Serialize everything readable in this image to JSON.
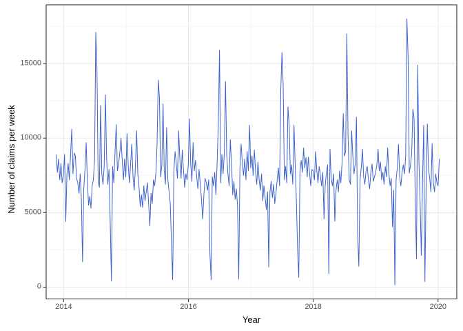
{
  "chart_data": {
    "type": "line",
    "title": "",
    "xlabel": "Year",
    "ylabel": "Number of claims per week",
    "series_name": "claims per week",
    "frequency": "weekly",
    "legend": "none",
    "grid": true,
    "line_color": "#3D63CE",
    "panel_border_color": "#333333",
    "grid_major_color": "#e8e8e8",
    "grid_minor_color": "#f4f4f4",
    "tick_label_color": "#4d4d4d",
    "x_ticks": [
      2014,
      2016,
      2018,
      2020
    ],
    "x_tick_labels": [
      "2014",
      "2016",
      "2018",
      "2020"
    ],
    "x_minor_ticks": [
      2015,
      2017,
      2019
    ],
    "y_ticks": [
      0,
      5000,
      10000,
      15000
    ],
    "y_tick_labels": [
      "0",
      "5000",
      "10000",
      "15000"
    ],
    "y_minor_ticks": [
      2500,
      7500,
      12500,
      17500
    ],
    "xlim": [
      2013.72,
      2020.3
    ],
    "ylim": [
      -790,
      18940
    ],
    "x_range_years": [
      2013.88,
      2020.02
    ],
    "values": [
      8900,
      7700,
      8600,
      7200,
      8300,
      7000,
      7500,
      8900,
      4400,
      7600,
      8300,
      7200,
      8900,
      10600,
      7600,
      9000,
      8800,
      7300,
      7000,
      6300,
      7600,
      5900,
      1700,
      6600,
      7900,
      9700,
      7100,
      5500,
      6100,
      5300,
      6800,
      7200,
      8600,
      17100,
      14500,
      7100,
      6700,
      12200,
      7600,
      6900,
      8100,
      12900,
      8700,
      6900,
      7900,
      4350,
      400,
      8100,
      7000,
      9000,
      10900,
      7800,
      8300,
      9000,
      10000,
      8500,
      7200,
      8600,
      7400,
      10300,
      8200,
      7000,
      8300,
      9600,
      7400,
      6500,
      8100,
      10500,
      7600,
      6700,
      5400,
      6200,
      5350,
      6800,
      5800,
      6400,
      7000,
      5600,
      4100,
      6300,
      5600,
      7200,
      6800,
      7600,
      9500,
      13900,
      12700,
      7400,
      8200,
      12300,
      7800,
      6900,
      10700,
      7200,
      6400,
      5600,
      3000,
      500,
      7800,
      9100,
      8300,
      7300,
      10500,
      8600,
      7300,
      9200,
      7900,
      6700,
      7600,
      7200,
      8200,
      11300,
      8300,
      7100,
      9700,
      7800,
      8500,
      7400,
      6600,
      7900,
      6900,
      5900,
      4580,
      6200,
      7300,
      7000,
      6500,
      7200,
      2300,
      500,
      7400,
      6800,
      7700,
      6200,
      8300,
      10950,
      15900,
      7000,
      8900,
      7600,
      9000,
      13800,
      8900,
      7600,
      6800,
      9900,
      8300,
      6200,
      7100,
      5900,
      6600,
      5500,
      550,
      8000,
      9600,
      8300,
      7500,
      8600,
      7200,
      9100,
      7800,
      10870,
      8000,
      8800,
      7500,
      9200,
      7800,
      6900,
      8400,
      7200,
      6500,
      7600,
      5800,
      6800,
      6000,
      5200,
      6400,
      1350,
      6400,
      7100,
      6000,
      6900,
      5600,
      6300,
      7200,
      8000,
      6800,
      13200,
      15750,
      13550,
      7200,
      8100,
      7000,
      12100,
      10880,
      7600,
      8200,
      6900,
      10870,
      8200,
      5800,
      2500,
      650,
      7800,
      8500,
      7700,
      9340,
      8000,
      8700,
      7400,
      8720,
      7600,
      6800,
      7900,
      7800,
      7200,
      9100,
      7800,
      7000,
      8100,
      7500,
      6800,
      7700,
      4580,
      6800,
      7700,
      8200,
      900,
      9260,
      7300,
      6800,
      7600,
      4420,
      6500,
      7200,
      6400,
      7800,
      7000,
      8300,
      11640,
      8800,
      9100,
      17000,
      10260,
      7200,
      6900,
      10490,
      8800,
      7600,
      8300,
      11410,
      3500,
      1400,
      7200,
      8000,
      9260,
      7400,
      6900,
      7800,
      8100,
      7200,
      6600,
      7700,
      8260,
      7100,
      7400,
      7700,
      8200,
      9260,
      7800,
      8400,
      7200,
      7700,
      6900,
      8100,
      7400,
      9340,
      7600,
      6800,
      7300,
      4040,
      6500,
      150,
      7200,
      8000,
      9570,
      7400,
      6800,
      7700,
      8200,
      7600,
      8800,
      18000,
      15500,
      7650,
      8200,
      9000,
      11950,
      11300,
      5700,
      1900,
      14900,
      8500,
      5700,
      2120,
      7000,
      10870,
      370,
      6600,
      10950,
      7900,
      7300,
      6400,
      9640,
      7000,
      6400,
      7600,
      7000,
      6800,
      8600
    ]
  }
}
